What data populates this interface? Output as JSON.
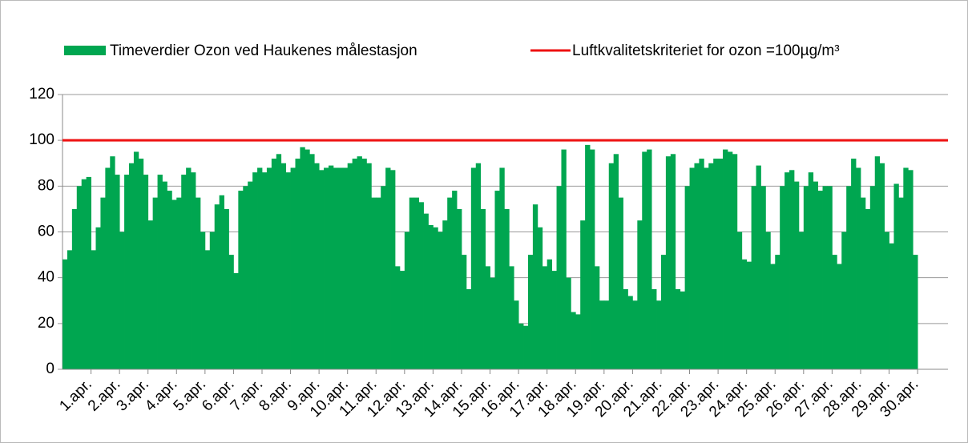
{
  "chart_data": {
    "type": "bar",
    "series": [
      {
        "name": "Timeverdier Ozon ved Haukenes målestasjon",
        "color": "#00a650",
        "values": [
          [
            48,
            52,
            70,
            80,
            83,
            84
          ],
          [
            52,
            62,
            75,
            88,
            93,
            85
          ],
          [
            60,
            85,
            90,
            95,
            92,
            85
          ],
          [
            65,
            75,
            85,
            82,
            78,
            74
          ],
          [
            75,
            85,
            88,
            86,
            75,
            60
          ],
          [
            52,
            60,
            72,
            76,
            70,
            50
          ],
          [
            42,
            78,
            80,
            82,
            86,
            88
          ],
          [
            86,
            88,
            92,
            94,
            90,
            86
          ],
          [
            88,
            92,
            97,
            96,
            94,
            90
          ],
          [
            87,
            88,
            89,
            88,
            88,
            88
          ],
          [
            90,
            92,
            93,
            92,
            90,
            75
          ],
          [
            75,
            80,
            88,
            87,
            45,
            43
          ],
          [
            60,
            75,
            75,
            73,
            68,
            63
          ],
          [
            62,
            60,
            65,
            75,
            78,
            70
          ],
          [
            50,
            35,
            88,
            90,
            70,
            45
          ],
          [
            40,
            78,
            88,
            70,
            45,
            30
          ],
          [
            20,
            19,
            50,
            72,
            62,
            45
          ],
          [
            48,
            43,
            80,
            96,
            40,
            25
          ],
          [
            24,
            65,
            98,
            96,
            45,
            30
          ],
          [
            30,
            90,
            94,
            75,
            35,
            32
          ],
          [
            30,
            65,
            95,
            96,
            35,
            30
          ],
          [
            50,
            93,
            94,
            35,
            34,
            80
          ],
          [
            88,
            90,
            92,
            88,
            90,
            92
          ],
          [
            92,
            96,
            95,
            94,
            60,
            48
          ],
          [
            47,
            80,
            89,
            80,
            60,
            46
          ],
          [
            50,
            80,
            86,
            87,
            82,
            60
          ],
          [
            80,
            86,
            82,
            78,
            80,
            80
          ],
          [
            50,
            46,
            60,
            80,
            92,
            88
          ],
          [
            75,
            70,
            80,
            93,
            90,
            60
          ],
          [
            55,
            81,
            75,
            88,
            87,
            50
          ]
        ]
      }
    ],
    "threshold": {
      "name": "Luftkvalitetskriteriet for ozon =100µg/m³",
      "color": "#ee1111",
      "value": 100
    },
    "categories": [
      "1.apr.",
      "2.apr.",
      "3.apr.",
      "4.apr.",
      "5.apr.",
      "6.apr.",
      "7.apr.",
      "8.apr.",
      "9.apr.",
      "10.apr.",
      "11.apr.",
      "12.apr.",
      "13.apr.",
      "14.apr.",
      "15.apr.",
      "16.apr.",
      "17.apr.",
      "18.apr.",
      "19.apr.",
      "20.apr.",
      "21.apr.",
      "22.apr.",
      "23.apr.",
      "24.apr.",
      "25.apr.",
      "26.apr.",
      "27.apr.",
      "28.apr.",
      "29.apr.",
      "30.apr."
    ],
    "ylim": [
      0,
      120
    ],
    "yticks": [
      0,
      20,
      40,
      60,
      80,
      100,
      120
    ],
    "grid": true
  }
}
